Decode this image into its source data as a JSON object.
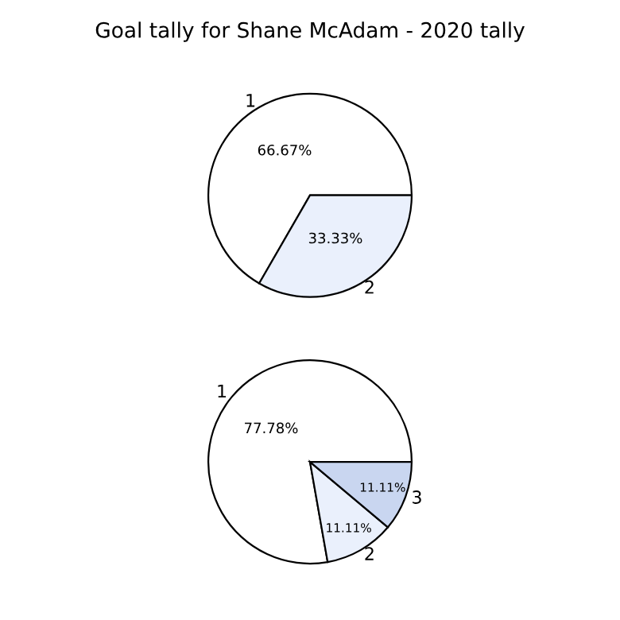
{
  "chart_data": [
    {
      "type": "pie",
      "title": "Goal tally for Shane McAdam - 2020 tally",
      "categories": [
        "1",
        "2"
      ],
      "values": [
        66.67,
        33.33
      ],
      "colors": [
        "#ffffff",
        "#eaf0fc"
      ],
      "value_labels": [
        "66.67%",
        "33.33%"
      ]
    },
    {
      "type": "pie",
      "categories": [
        "1",
        "2",
        "3"
      ],
      "values": [
        77.78,
        11.11,
        11.11
      ],
      "colors": [
        "#ffffff",
        "#eaf0fc",
        "#c9d6f0"
      ],
      "value_labels": [
        "77.78%",
        "11.11%",
        "11.11%"
      ]
    }
  ]
}
